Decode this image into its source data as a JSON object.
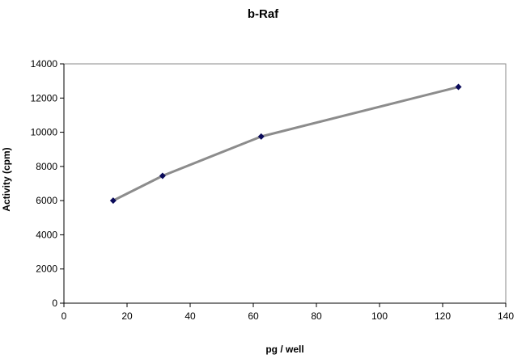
{
  "chart_data": {
    "type": "line",
    "title": "b-Raf",
    "xlabel": "pg / well",
    "ylabel": "Activity (cpm)",
    "xlim": [
      0,
      140
    ],
    "ylim": [
      0,
      14000
    ],
    "x_ticks": [
      "0",
      "20",
      "40",
      "60",
      "80",
      "100",
      "120",
      "140"
    ],
    "y_ticks": [
      "0",
      "2000",
      "4000",
      "6000",
      "8000",
      "10000",
      "12000",
      "14000"
    ],
    "grid": false,
    "legend": "none",
    "series": [
      {
        "x": [
          15.6,
          31.25,
          62.5,
          125
        ],
        "y": [
          6000,
          7450,
          9750,
          12650
        ],
        "line_color": "#8c8c8c",
        "marker_color": "#0a0a5a",
        "marker": "diamond"
      }
    ]
  }
}
